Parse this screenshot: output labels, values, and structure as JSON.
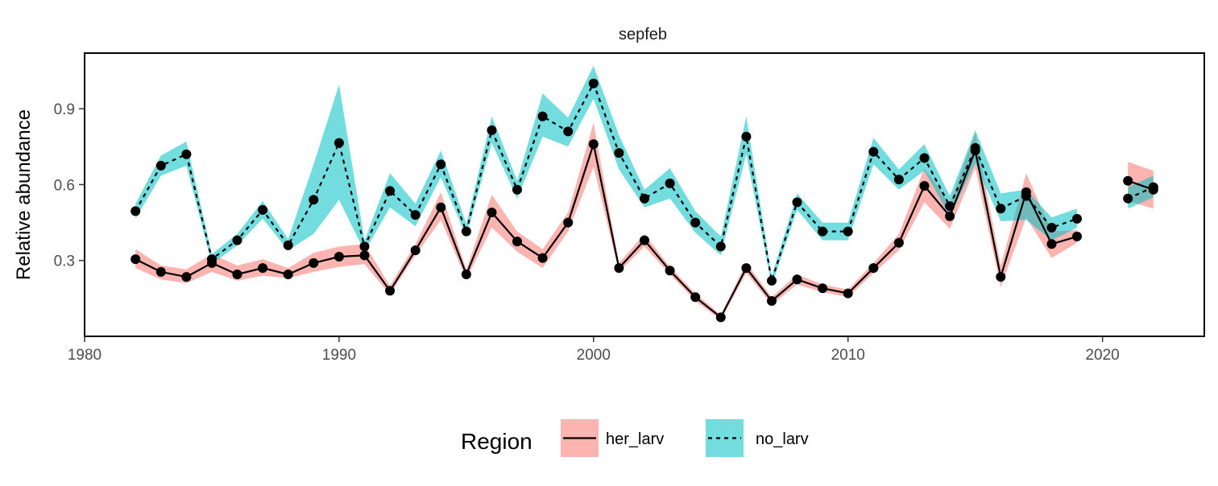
{
  "chart_data": {
    "type": "line",
    "title": "sepfeb",
    "xlabel": "",
    "ylabel": "Relative abundance",
    "xlim": [
      1980,
      2024
    ],
    "ylim": [
      0.0,
      1.12
    ],
    "xticks": [
      1980,
      1990,
      2000,
      2010,
      2020
    ],
    "yticks": [
      0.3,
      0.6,
      0.9
    ],
    "xtick_labels": [
      "1980",
      "1990",
      "2000",
      "2010",
      "2020"
    ],
    "ytick_labels": [
      "0.3",
      "0.6",
      "0.9"
    ],
    "grid": false,
    "legend": {
      "title": "Region",
      "position": "bottom",
      "entries": [
        "her_larv",
        "no_larv"
      ]
    },
    "series": [
      {
        "name": "her_larv",
        "fill_color": "#F8766D",
        "line_style": "solid",
        "segments": [
          {
            "x": [
              1982,
              1983,
              1984,
              1985,
              1986,
              1987,
              1988,
              1989,
              1990,
              1991,
              1992,
              1993,
              1994,
              1995,
              1996,
              1997,
              1998,
              1999,
              2000,
              2001,
              2002,
              2003,
              2004,
              2005,
              2006,
              2007,
              2008,
              2009,
              2010,
              2011,
              2012,
              2013,
              2014,
              2015,
              2016,
              2017,
              2018,
              2019
            ],
            "y": [
              0.305,
              0.255,
              0.235,
              0.29,
              0.245,
              0.27,
              0.245,
              0.29,
              0.315,
              0.32,
              0.18,
              0.34,
              0.51,
              0.245,
              0.49,
              0.375,
              0.31,
              0.45,
              0.76,
              0.27,
              0.38,
              0.26,
              0.155,
              0.075,
              0.27,
              0.14,
              0.225,
              0.19,
              0.17,
              0.27,
              0.37,
              0.595,
              0.475,
              0.735,
              0.235,
              0.57,
              0.365,
              0.395
            ],
            "lower": [
              0.27,
              0.225,
              0.21,
              0.255,
              0.22,
              0.24,
              0.23,
              0.255,
              0.275,
              0.285,
              0.165,
              0.32,
              0.46,
              0.225,
              0.43,
              0.335,
              0.27,
              0.415,
              0.67,
              0.255,
              0.355,
              0.245,
              0.14,
              0.065,
              0.25,
              0.125,
              0.205,
              0.175,
              0.155,
              0.25,
              0.34,
              0.53,
              0.425,
              0.665,
              0.195,
              0.47,
              0.31,
              0.37
            ],
            "upper": [
              0.345,
              0.28,
              0.265,
              0.325,
              0.28,
              0.305,
              0.27,
              0.33,
              0.355,
              0.365,
              0.2,
              0.365,
              0.57,
              0.265,
              0.56,
              0.415,
              0.345,
              0.49,
              0.845,
              0.29,
              0.405,
              0.275,
              0.17,
              0.085,
              0.29,
              0.155,
              0.245,
              0.205,
              0.185,
              0.29,
              0.405,
              0.665,
              0.525,
              0.805,
              0.28,
              0.645,
              0.415,
              0.42
            ]
          },
          {
            "x": [
              2021,
              2022
            ],
            "y": [
              0.615,
              0.58
            ],
            "lower": [
              0.535,
              0.505
            ],
            "upper": [
              0.69,
              0.655
            ]
          }
        ]
      },
      {
        "name": "no_larv",
        "fill_color": "#00BFC4",
        "line_style": "dashed",
        "segments": [
          {
            "x": [
              1982,
              1983,
              1984,
              1985,
              1986,
              1987,
              1988,
              1989,
              1990,
              1991,
              1992,
              1993,
              1994,
              1995,
              1996,
              1997,
              1998,
              1999,
              2000,
              2001,
              2002,
              2003,
              2004,
              2005,
              2006,
              2007,
              2008,
              2009,
              2010,
              2011,
              2012,
              2013,
              2014,
              2015,
              2016,
              2017,
              2018,
              2019
            ],
            "y": [
              0.495,
              0.675,
              0.72,
              0.305,
              0.38,
              0.5,
              0.36,
              0.54,
              0.765,
              0.355,
              0.575,
              0.48,
              0.68,
              0.415,
              0.815,
              0.58,
              0.87,
              0.81,
              1.0,
              0.725,
              0.545,
              0.605,
              0.45,
              0.355,
              0.79,
              0.22,
              0.53,
              0.415,
              0.415,
              0.73,
              0.62,
              0.705,
              0.515,
              0.745,
              0.505,
              0.555,
              0.43,
              0.465
            ],
            "lower": [
              0.465,
              0.635,
              0.675,
              0.285,
              0.36,
              0.465,
              0.34,
              0.405,
              0.54,
              0.335,
              0.51,
              0.435,
              0.63,
              0.395,
              0.765,
              0.545,
              0.79,
              0.75,
              0.94,
              0.66,
              0.51,
              0.545,
              0.41,
              0.32,
              0.72,
              0.2,
              0.5,
              0.38,
              0.38,
              0.68,
              0.58,
              0.655,
              0.475,
              0.685,
              0.455,
              0.46,
              0.38,
              0.43
            ],
            "upper": [
              0.525,
              0.715,
              0.77,
              0.325,
              0.405,
              0.535,
              0.385,
              0.68,
              0.995,
              0.38,
              0.645,
              0.525,
              0.735,
              0.445,
              0.87,
              0.615,
              0.96,
              0.865,
              1.07,
              0.795,
              0.58,
              0.665,
              0.495,
              0.395,
              0.87,
              0.24,
              0.565,
              0.45,
              0.45,
              0.785,
              0.66,
              0.76,
              0.555,
              0.815,
              0.565,
              0.58,
              0.47,
              0.505
            ]
          },
          {
            "x": [
              2021,
              2022
            ],
            "y": [
              0.545,
              0.59
            ],
            "lower": [
              0.505,
              0.55
            ],
            "upper": [
              0.59,
              0.635
            ]
          }
        ]
      }
    ]
  }
}
